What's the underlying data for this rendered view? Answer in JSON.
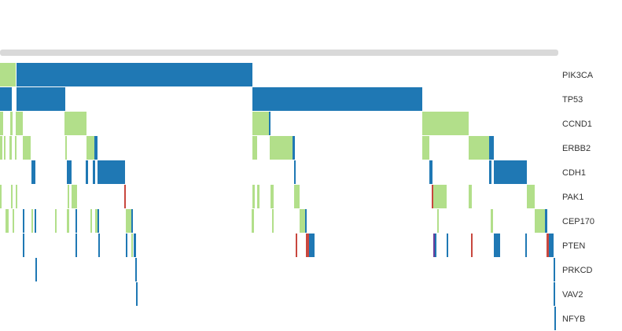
{
  "chart_data": {
    "type": "heatmap",
    "genes": [
      "PIK3CA",
      "TP53",
      "CCND1",
      "ERBB2",
      "CDH1",
      "PAK1",
      "CEP170",
      "PTEN",
      "PRKCD",
      "VAV2",
      "NFYB"
    ],
    "x_range": [
      0,
      710
    ],
    "legend": "none",
    "colors": {
      "amplification": "#b2df8a",
      "mutation": "#1f78b4",
      "deletion": "#c8473e",
      "purple": "#6a3d9a",
      "scroll_bar": "#d9d9d9"
    },
    "alterations": {
      "PIK3CA": [
        {
          "x0": 0,
          "x1": 20,
          "type": "amplification"
        },
        {
          "x0": 21,
          "x1": 321,
          "type": "mutation"
        }
      ],
      "TP53": [
        {
          "x0": 0,
          "x1": 15,
          "type": "mutation"
        },
        {
          "x0": 21,
          "x1": 83,
          "type": "mutation"
        },
        {
          "x0": 321,
          "x1": 537,
          "type": "mutation"
        }
      ],
      "CCND1": [
        {
          "x0": 0,
          "x1": 4,
          "type": "amplification"
        },
        {
          "x0": 13,
          "x1": 16,
          "type": "amplification"
        },
        {
          "x0": 20,
          "x1": 29,
          "type": "amplification"
        },
        {
          "x0": 82,
          "x1": 110,
          "type": "amplification"
        },
        {
          "x0": 321,
          "x1": 342,
          "type": "amplification"
        },
        {
          "x0": 342,
          "x1": 344,
          "type": "mutation"
        },
        {
          "x0": 537,
          "x1": 596,
          "type": "amplification"
        }
      ],
      "ERBB2": [
        {
          "x0": 0,
          "x1": 3,
          "type": "amplification"
        },
        {
          "x0": 5,
          "x1": 7,
          "type": "amplification"
        },
        {
          "x0": 12,
          "x1": 15,
          "type": "amplification"
        },
        {
          "x0": 19,
          "x1": 21,
          "type": "amplification"
        },
        {
          "x0": 29,
          "x1": 39,
          "type": "amplification"
        },
        {
          "x0": 83,
          "x1": 85,
          "type": "amplification"
        },
        {
          "x0": 110,
          "x1": 120,
          "type": "amplification"
        },
        {
          "x0": 120,
          "x1": 124,
          "type": "mutation"
        },
        {
          "x0": 321,
          "x1": 327,
          "type": "amplification"
        },
        {
          "x0": 343,
          "x1": 372,
          "type": "amplification"
        },
        {
          "x0": 372,
          "x1": 375,
          "type": "mutation"
        },
        {
          "x0": 537,
          "x1": 546,
          "type": "amplification"
        },
        {
          "x0": 596,
          "x1": 622,
          "type": "amplification"
        },
        {
          "x0": 622,
          "x1": 628,
          "type": "mutation"
        }
      ],
      "CDH1": [
        {
          "x0": 40,
          "x1": 45,
          "type": "mutation"
        },
        {
          "x0": 85,
          "x1": 91,
          "type": "mutation"
        },
        {
          "x0": 109,
          "x1": 112,
          "type": "mutation"
        },
        {
          "x0": 118,
          "x1": 121,
          "type": "mutation"
        },
        {
          "x0": 124,
          "x1": 159,
          "type": "mutation"
        },
        {
          "x0": 374,
          "x1": 376,
          "type": "mutation"
        },
        {
          "x0": 546,
          "x1": 550,
          "type": "mutation"
        },
        {
          "x0": 622,
          "x1": 625,
          "type": "mutation"
        },
        {
          "x0": 628,
          "x1": 670,
          "type": "mutation"
        }
      ],
      "PAK1": [
        {
          "x0": 0,
          "x1": 2,
          "type": "amplification"
        },
        {
          "x0": 14,
          "x1": 16,
          "type": "amplification"
        },
        {
          "x0": 20,
          "x1": 22,
          "type": "amplification"
        },
        {
          "x0": 86,
          "x1": 88,
          "type": "amplification"
        },
        {
          "x0": 91,
          "x1": 98,
          "type": "amplification"
        },
        {
          "x0": 158,
          "x1": 160,
          "type": "deletion"
        },
        {
          "x0": 321,
          "x1": 324,
          "type": "amplification"
        },
        {
          "x0": 327,
          "x1": 330,
          "type": "amplification"
        },
        {
          "x0": 344,
          "x1": 348,
          "type": "amplification"
        },
        {
          "x0": 374,
          "x1": 381,
          "type": "amplification"
        },
        {
          "x0": 549,
          "x1": 551,
          "type": "deletion"
        },
        {
          "x0": 551,
          "x1": 568,
          "type": "amplification"
        },
        {
          "x0": 596,
          "x1": 600,
          "type": "amplification"
        },
        {
          "x0": 670,
          "x1": 680,
          "type": "amplification"
        }
      ],
      "CEP170": [
        {
          "x0": 7,
          "x1": 11,
          "type": "amplification"
        },
        {
          "x0": 16,
          "x1": 18,
          "type": "amplification"
        },
        {
          "x0": 29,
          "x1": 31,
          "type": "mutation"
        },
        {
          "x0": 40,
          "x1": 42,
          "type": "amplification"
        },
        {
          "x0": 44,
          "x1": 46,
          "type": "mutation"
        },
        {
          "x0": 70,
          "x1": 72,
          "type": "amplification"
        },
        {
          "x0": 85,
          "x1": 88,
          "type": "amplification"
        },
        {
          "x0": 96,
          "x1": 98,
          "type": "mutation"
        },
        {
          "x0": 115,
          "x1": 117,
          "type": "amplification"
        },
        {
          "x0": 121,
          "x1": 124,
          "type": "amplification"
        },
        {
          "x0": 124,
          "x1": 126,
          "type": "mutation"
        },
        {
          "x0": 160,
          "x1": 167,
          "type": "amplification"
        },
        {
          "x0": 167,
          "x1": 169,
          "type": "mutation"
        },
        {
          "x0": 320,
          "x1": 323,
          "type": "amplification"
        },
        {
          "x0": 346,
          "x1": 348,
          "type": "amplification"
        },
        {
          "x0": 381,
          "x1": 388,
          "type": "amplification"
        },
        {
          "x0": 388,
          "x1": 390,
          "type": "mutation"
        },
        {
          "x0": 556,
          "x1": 558,
          "type": "amplification"
        },
        {
          "x0": 624,
          "x1": 627,
          "type": "amplification"
        },
        {
          "x0": 680,
          "x1": 693,
          "type": "amplification"
        },
        {
          "x0": 693,
          "x1": 696,
          "type": "mutation"
        }
      ],
      "PTEN": [
        {
          "x0": 29,
          "x1": 31,
          "type": "mutation"
        },
        {
          "x0": 96,
          "x1": 98,
          "type": "mutation"
        },
        {
          "x0": 125,
          "x1": 127,
          "type": "mutation"
        },
        {
          "x0": 160,
          "x1": 162,
          "type": "mutation"
        },
        {
          "x0": 167,
          "x1": 169,
          "type": "amplification"
        },
        {
          "x0": 170,
          "x1": 173,
          "type": "mutation"
        },
        {
          "x0": 376,
          "x1": 378,
          "type": "deletion"
        },
        {
          "x0": 389,
          "x1": 393,
          "type": "deletion"
        },
        {
          "x0": 393,
          "x1": 400,
          "type": "mutation"
        },
        {
          "x0": 551,
          "x1": 553,
          "type": "purple"
        },
        {
          "x0": 553,
          "x1": 555,
          "type": "mutation"
        },
        {
          "x0": 568,
          "x1": 570,
          "type": "mutation"
        },
        {
          "x0": 599,
          "x1": 601,
          "type": "deletion"
        },
        {
          "x0": 628,
          "x1": 636,
          "type": "mutation"
        },
        {
          "x0": 668,
          "x1": 670,
          "type": "mutation"
        },
        {
          "x0": 695,
          "x1": 698,
          "type": "deletion"
        },
        {
          "x0": 698,
          "x1": 704,
          "type": "mutation"
        }
      ],
      "PRKCD": [
        {
          "x0": 45,
          "x1": 47,
          "type": "mutation"
        },
        {
          "x0": 172,
          "x1": 174,
          "type": "mutation"
        },
        {
          "x0": 704,
          "x1": 706,
          "type": "mutation"
        }
      ],
      "VAV2": [
        {
          "x0": 173,
          "x1": 175,
          "type": "mutation"
        },
        {
          "x0": 704,
          "x1": 706,
          "type": "mutation"
        }
      ],
      "NFYB": [
        {
          "x0": 705,
          "x1": 707,
          "type": "mutation"
        }
      ]
    }
  }
}
